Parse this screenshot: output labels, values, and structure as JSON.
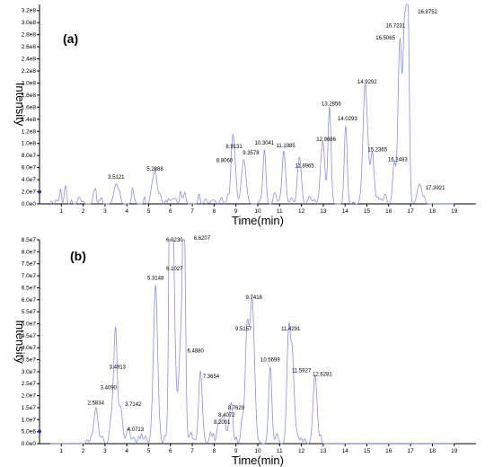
{
  "chart_data": [
    {
      "type": "line",
      "panel_label": "(a)",
      "xlabel": "Time(min)",
      "ylabel": "Intensity",
      "xlim": [
        0,
        20
      ],
      "ylim": [
        0,
        330000000.0
      ],
      "x_ticks": [
        "1",
        "2",
        "3",
        "4",
        "5",
        "6",
        "7",
        "8",
        "9",
        "10",
        "11",
        "12",
        "13",
        "14",
        "15",
        "16",
        "17",
        "18",
        "19"
      ],
      "y_ticks": [
        "0.0e0",
        "2.0e7",
        "4.0e7",
        "6.0e7",
        "8.0e7",
        "1.0e8",
        "1.2e8",
        "1.4e8",
        "1.6e8",
        "1.8e8",
        "2.0e8",
        "2.2e8",
        "2.4e8",
        "2.6e8",
        "2.8e8",
        "3.0e8",
        "3.2e8"
      ],
      "line_color": "#8a8fe8",
      "peaks": [
        {
          "x": 3.5121,
          "y": 33000000.0,
          "label": "3.5121"
        },
        {
          "x": 5.2888,
          "y": 46000000.0,
          "label": "5.2888"
        },
        {
          "x": 8.806,
          "y": 60000000.0,
          "label": "8.8060"
        },
        {
          "x": 8.9131,
          "y": 83000000.0,
          "label": "8.9131"
        },
        {
          "x": 9.3578,
          "y": 73000000.0,
          "label": "9.3578"
        },
        {
          "x": 10.3041,
          "y": 89000000.0,
          "label": "10.3041"
        },
        {
          "x": 11.1985,
          "y": 85000000.0,
          "label": "11.1985"
        },
        {
          "x": 11.8965,
          "y": 75000000.0,
          "label": "11.8965"
        },
        {
          "x": 12.9686,
          "y": 95000000.0,
          "label": "12.9686"
        },
        {
          "x": 13.2856,
          "y": 154000000.0,
          "label": "13.2856"
        },
        {
          "x": 14.0293,
          "y": 129000000.0,
          "label": "14.0293"
        },
        {
          "x": 14.9292,
          "y": 190000000.0,
          "label": "14.9292"
        },
        {
          "x": 15.2365,
          "y": 78000000.0,
          "label": "15.2365"
        },
        {
          "x": 16.2483,
          "y": 68000000.0,
          "label": "16.2483"
        },
        {
          "x": 16.5065,
          "y": 260000000.0,
          "label": "16.5065"
        },
        {
          "x": 16.7231,
          "y": 280000000.0,
          "label": "16.7231"
        },
        {
          "x": 16.8752,
          "y": 330000000.0,
          "label": "16.8752"
        },
        {
          "x": 17.3921,
          "y": 30000000.0,
          "label": "17.3921"
        }
      ]
    },
    {
      "type": "line",
      "panel_label": "(b)",
      "xlabel": "Time(min)",
      "ylabel": "Intensity",
      "xlim": [
        0,
        20
      ],
      "ylim": [
        0,
        85000000.0
      ],
      "x_ticks": [
        "1",
        "2",
        "3",
        "4",
        "5",
        "6",
        "7",
        "8",
        "9",
        "10",
        "11",
        "12",
        "13",
        "14",
        "15",
        "16",
        "17",
        "18",
        "19"
      ],
      "y_ticks": [
        "0.0e0",
        "5.0e6",
        "1.0e7",
        "1.5e7",
        "2.0e7",
        "2.5e7",
        "3.0e7",
        "3.5e7",
        "4.0e7",
        "4.5e7",
        "5.0e7",
        "5.5e7",
        "6.0e7",
        "6.5e7",
        "7.0e7",
        "7.5e7",
        "8.0e7",
        "8.5e7"
      ],
      "line_color": "#8a8fe8",
      "peaks": [
        {
          "x": 2.5834,
          "y": 14000000.0,
          "label": "2.5834"
        },
        {
          "x": 3.409,
          "y": 20500000.0,
          "label": "3.4090"
        },
        {
          "x": 3.4913,
          "y": 29000000.0,
          "label": "3.4913"
        },
        {
          "x": 3.7142,
          "y": 15000000.0,
          "label": "3.7142"
        },
        {
          "x": 4.0713,
          "y": 4500000.0,
          "label": "4.0713"
        },
        {
          "x": 5.3148,
          "y": 66000000.0,
          "label": "5.3148"
        },
        {
          "x": 6.0,
          "y": 70000000.0,
          "label": ""
        },
        {
          "x": 6.023,
          "y": 82000000.0,
          "label": "6.0230"
        },
        {
          "x": 6.1027,
          "y": 70000000.0,
          "label": "6.1027"
        },
        {
          "x": 6.488,
          "y": 38000000.0,
          "label": "6.4880"
        },
        {
          "x": 6.6207,
          "y": 85000000.0,
          "label": "6.6207"
        },
        {
          "x": 7.3654,
          "y": 28000000.0,
          "label": "7.3654"
        },
        {
          "x": 8.2001,
          "y": 6000000.0,
          "label": "8.2001"
        },
        {
          "x": 8.4072,
          "y": 9000000.0,
          "label": "8.4072"
        },
        {
          "x": 8.7629,
          "y": 12000000.0,
          "label": "8.7629"
        },
        {
          "x": 9.5157,
          "y": 45000000.0,
          "label": "9.5157"
        },
        {
          "x": 9.7418,
          "y": 58000000.0,
          "label": "9.7418"
        },
        {
          "x": 10.5699,
          "y": 32000000.0,
          "label": "10.5699"
        },
        {
          "x": 11.4291,
          "y": 45000000.0,
          "label": "11.4291"
        },
        {
          "x": 11.5927,
          "y": 29000000.0,
          "label": "11.5927"
        },
        {
          "x": 12.6281,
          "y": 26000000.0,
          "label": "12.6281"
        }
      ]
    }
  ]
}
